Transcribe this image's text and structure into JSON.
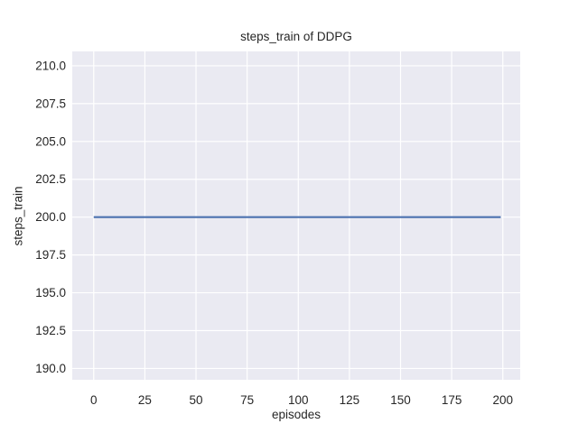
{
  "figure": {
    "title": "steps_train of DDPG",
    "xlabel": "episodes",
    "ylabel": "steps_train"
  },
  "chart_data": {
    "type": "line",
    "title": "steps_train of DDPG",
    "xlabel": "episodes",
    "ylabel": "steps_train",
    "series": [
      {
        "name": "steps_train",
        "color": "#4c72b0",
        "x": [
          0,
          199
        ],
        "y": [
          200,
          200
        ],
        "description": "constant value 200 steps for every episode 0-199"
      }
    ],
    "xlim": [
      -10.5,
      208.5
    ],
    "ylim": [
      189.25,
      210.95
    ],
    "xticks": [
      0,
      25,
      50,
      75,
      100,
      125,
      150,
      175,
      200
    ],
    "xtick_labels": [
      "0",
      "25",
      "50",
      "75",
      "100",
      "125",
      "150",
      "175",
      "200"
    ],
    "yticks": [
      190.0,
      192.5,
      195.0,
      197.5,
      200.0,
      202.5,
      205.0,
      207.5,
      210.0
    ],
    "ytick_labels": [
      "190.0",
      "192.5",
      "195.0",
      "197.5",
      "200.0",
      "202.5",
      "205.0",
      "207.5",
      "210.0"
    ],
    "grid": true,
    "legend": "none",
    "style": {
      "figure_background": "#ffffff",
      "axes_background": "#eaeaf2",
      "grid_color": "#ffffff",
      "text_color": "#262626",
      "line_width": 2.2
    }
  }
}
